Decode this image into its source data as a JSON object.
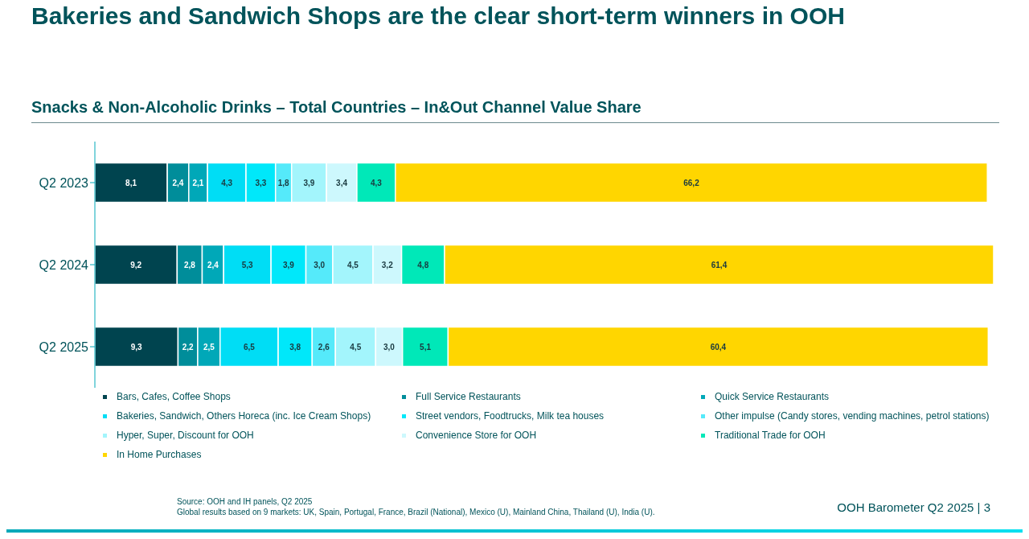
{
  "chart_data": {
    "type": "bar",
    "orientation": "horizontal",
    "stacked": true,
    "title": "Bakeries and Sandwich Shops are the clear short-term winners in OOH",
    "subtitle": "Snacks & Non-Alcoholic Drinks – Total Countries – In&Out Channel Value Share",
    "categories": [
      "Q2 2023",
      "Q2 2024",
      "Q2 2025"
    ],
    "series": [
      {
        "name": "Bars, Cafes, Coffee Shops",
        "color": "#00444f",
        "values": [
          8.1,
          9.2,
          9.3
        ],
        "value_labels": [
          "8,1",
          "9,2",
          "9,3"
        ]
      },
      {
        "name": "Full Service Restaurants",
        "color": "#008d9a",
        "values": [
          2.4,
          2.8,
          2.2
        ],
        "value_labels": [
          "2,4",
          "2,8",
          "2,2"
        ]
      },
      {
        "name": "Quick Service Restaurants",
        "color": "#00a8b8",
        "values": [
          2.1,
          2.4,
          2.5
        ],
        "value_labels": [
          "2,1",
          "2,4",
          "2,5"
        ]
      },
      {
        "name": "Bakeries, Sandwich, Others Horeca (inc. Ice Cream Shops)",
        "color": "#00ddf5",
        "values": [
          4.3,
          5.3,
          6.5
        ],
        "value_labels": [
          "4,3",
          "5,3",
          "6,5"
        ]
      },
      {
        "name": " Street vendors, Foodtrucks, Milk tea houses",
        "color": "#00e8fa",
        "values": [
          3.3,
          3.9,
          3.8
        ],
        "value_labels": [
          "3,3",
          "3,9",
          "3,8"
        ]
      },
      {
        "name": "Other impulse (Candy stores, vending machines, petrol stations)",
        "color": "#55eafa",
        "values": [
          1.8,
          3.0,
          2.6
        ],
        "value_labels": [
          "1,8",
          "3,0",
          "2,6"
        ]
      },
      {
        "name": "Hyper, Super, Discount for OOH",
        "color": "#a3f5fc",
        "values": [
          3.9,
          4.5,
          4.5
        ],
        "value_labels": [
          "3,9",
          "4,5",
          "4,5"
        ]
      },
      {
        "name": "Convenience Store for OOH",
        "color": "#cdf8fd",
        "values": [
          3.4,
          3.2,
          3.0
        ],
        "value_labels": [
          "3,4",
          "3,2",
          "3,0"
        ]
      },
      {
        "name": "Traditional Trade for OOH",
        "color": "#00e8b8",
        "values": [
          4.3,
          4.8,
          5.1
        ],
        "value_labels": [
          "4,3",
          "4,8",
          "5,1"
        ]
      },
      {
        "name": "In Home Purchases",
        "color": "#ffd600",
        "values": [
          66.2,
          61.4,
          60.4
        ],
        "value_labels": [
          "66,2",
          "61,4",
          "60,4"
        ]
      }
    ],
    "legend": "bottom",
    "grid": false,
    "annotations": [
      "Source: OOH and IH panels, Q2 2025",
      "Global results based on 9 markets: UK, Spain, Portugal, France, Brazil (National), Mexico (U), Mainland China, Thailand (U), India (U).",
      "OOH Barometer Q2 2025 | 3"
    ]
  }
}
